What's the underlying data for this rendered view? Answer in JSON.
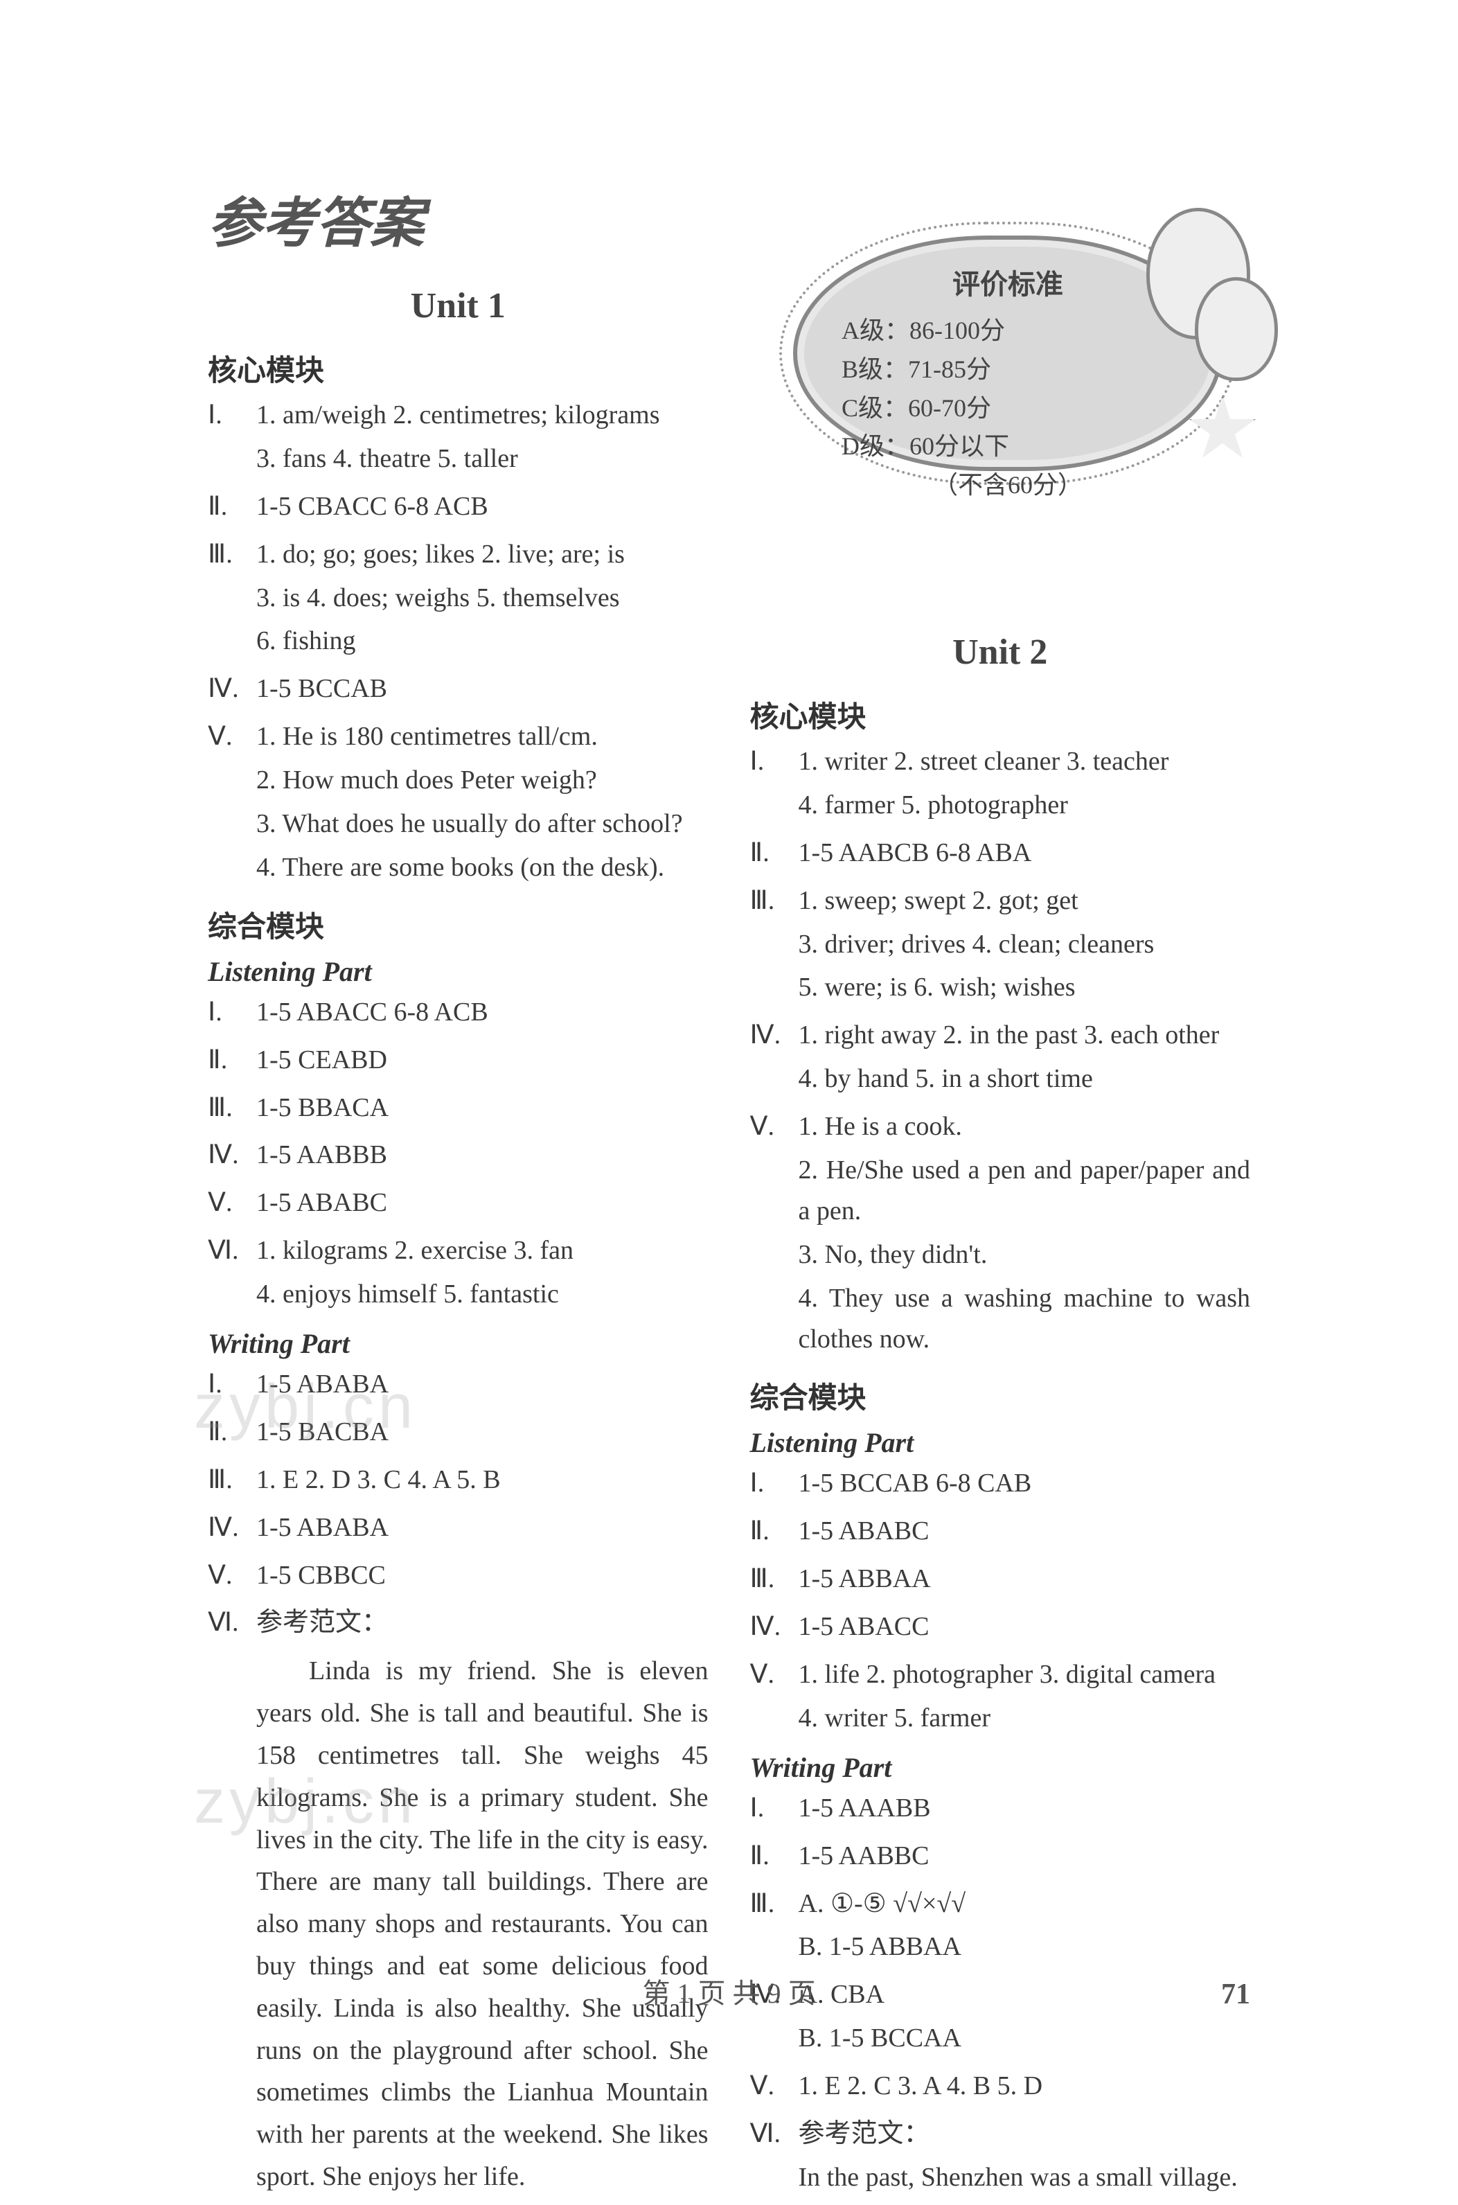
{
  "page_title": "参考答案",
  "watermark": "zybj.cn",
  "footer": "第 1 页  共 9 页",
  "page_number": "71",
  "grading": {
    "title": "评价标准",
    "rows": [
      "A级：86-100分",
      "B级：71-85分",
      "C级：60-70分",
      "D级：60分以下",
      "（不含60分）"
    ]
  },
  "left": {
    "unit_title": "Unit 1",
    "core_title": "核心模块",
    "core": [
      {
        "r": "Ⅰ.",
        "lines": [
          "1. am/weigh   2. centimetres; kilograms",
          "3. fans   4. theatre   5. taller"
        ]
      },
      {
        "r": "Ⅱ.",
        "lines": [
          "1-5   CBACC   6-8   ACB"
        ]
      },
      {
        "r": "Ⅲ.",
        "lines": [
          "1. do; go; goes; likes   2. live; are; is",
          "3. is   4. does; weighs   5. themselves",
          "6. fishing"
        ]
      },
      {
        "r": "Ⅳ.",
        "lines": [
          "1-5   BCCAB"
        ]
      },
      {
        "r": "Ⅴ.",
        "lines": [
          "1. He is 180 centimetres tall/cm.",
          "2. How much does Peter weigh?",
          "3. What does he usually do after school?",
          "4. There are some books (on the desk)."
        ]
      }
    ],
    "comp_title": "综合模块",
    "listen_title": "Listening Part",
    "listen": [
      {
        "r": "Ⅰ.",
        "lines": [
          "1-5   ABACC   6-8   ACB"
        ]
      },
      {
        "r": "Ⅱ.",
        "lines": [
          "1-5   CEABD"
        ]
      },
      {
        "r": "Ⅲ.",
        "lines": [
          "1-5   BBACA"
        ]
      },
      {
        "r": "Ⅳ.",
        "lines": [
          "1-5   AABBB"
        ]
      },
      {
        "r": "Ⅴ.",
        "lines": [
          "1-5   ABABC"
        ]
      },
      {
        "r": "Ⅵ.",
        "lines": [
          "1. kilograms   2. exercise   3. fan",
          "4. enjoys himself   5. fantastic"
        ]
      }
    ],
    "write_title": "Writing Part",
    "write": [
      {
        "r": "Ⅰ.",
        "lines": [
          "1-5   ABABA"
        ]
      },
      {
        "r": "Ⅱ.",
        "lines": [
          "1-5   BACBA"
        ]
      },
      {
        "r": "Ⅲ.",
        "lines": [
          "1. E   2. D   3. C   4. A   5. B"
        ]
      },
      {
        "r": "Ⅳ.",
        "lines": [
          "1-5   ABABA"
        ]
      },
      {
        "r": "Ⅴ.",
        "lines": [
          "1-5   CBBCC"
        ]
      },
      {
        "r": "Ⅵ.",
        "lines": [
          "参考范文："
        ]
      }
    ],
    "essay": "Linda is my friend. She is eleven years old. She is tall and beautiful. She is 158 centimetres tall. She weighs 45 kilograms. She is a primary student. She lives in the city. The life in the city is easy. There are many tall buildings. There are also many shops and restaurants. You can buy things and eat some delicious food easily. Linda is also healthy. She usually runs on the playground after school. She sometimes climbs the Lianhua Mountain with her parents at the weekend. She likes sport. She enjoys her life."
  },
  "right": {
    "unit_title": "Unit 2",
    "core_title": "核心模块",
    "core": [
      {
        "r": "Ⅰ.",
        "lines": [
          "1. writer   2. street cleaner   3. teacher",
          "4. farmer   5. photographer"
        ]
      },
      {
        "r": "Ⅱ.",
        "lines": [
          "1-5   AABCB   6-8   ABA"
        ]
      },
      {
        "r": "Ⅲ.",
        "lines": [
          "1. sweep; swept   2. got; get",
          "3. driver; drives   4. clean; cleaners",
          "5. were; is   6. wish; wishes"
        ]
      },
      {
        "r": "Ⅳ.",
        "lines": [
          "1. right away   2. in the past   3. each other",
          "4. by hand   5. in a short time"
        ]
      },
      {
        "r": "Ⅴ.",
        "lines": [
          "1. He is a cook.",
          "2. He/She used a pen and paper/paper and a pen.",
          "3. No, they didn't.",
          "4. They use a washing machine to wash clothes now."
        ]
      }
    ],
    "comp_title": "综合模块",
    "listen_title": "Listening Part",
    "listen": [
      {
        "r": "Ⅰ.",
        "lines": [
          "1-5   BCCAB   6-8   CAB"
        ]
      },
      {
        "r": "Ⅱ.",
        "lines": [
          "1-5   ABABC"
        ]
      },
      {
        "r": "Ⅲ.",
        "lines": [
          "1-5   ABBAA"
        ]
      },
      {
        "r": "Ⅳ.",
        "lines": [
          "1-5   ABACC"
        ]
      },
      {
        "r": "Ⅴ.",
        "lines": [
          "1. life   2. photographer   3. digital camera",
          "4. writer   5. farmer"
        ]
      }
    ],
    "write_title": "Writing Part",
    "write": [
      {
        "r": "Ⅰ.",
        "lines": [
          "1-5   AAABB"
        ]
      },
      {
        "r": "Ⅱ.",
        "lines": [
          "1-5   AABBC"
        ]
      },
      {
        "r": "Ⅲ.",
        "lines": [
          "A. ①-⑤   √√×√√",
          "B. 1-5   ABBAA"
        ]
      },
      {
        "r": "Ⅳ.",
        "lines": [
          "A. CBA",
          "B. 1-5   BCCAA"
        ]
      },
      {
        "r": "Ⅴ.",
        "lines": [
          "1. E   2. C   3. A   4. B   5. D"
        ]
      },
      {
        "r": "Ⅵ.",
        "lines": [
          "参考范文：",
          "In the past, Shenzhen was a small village."
        ]
      }
    ]
  }
}
